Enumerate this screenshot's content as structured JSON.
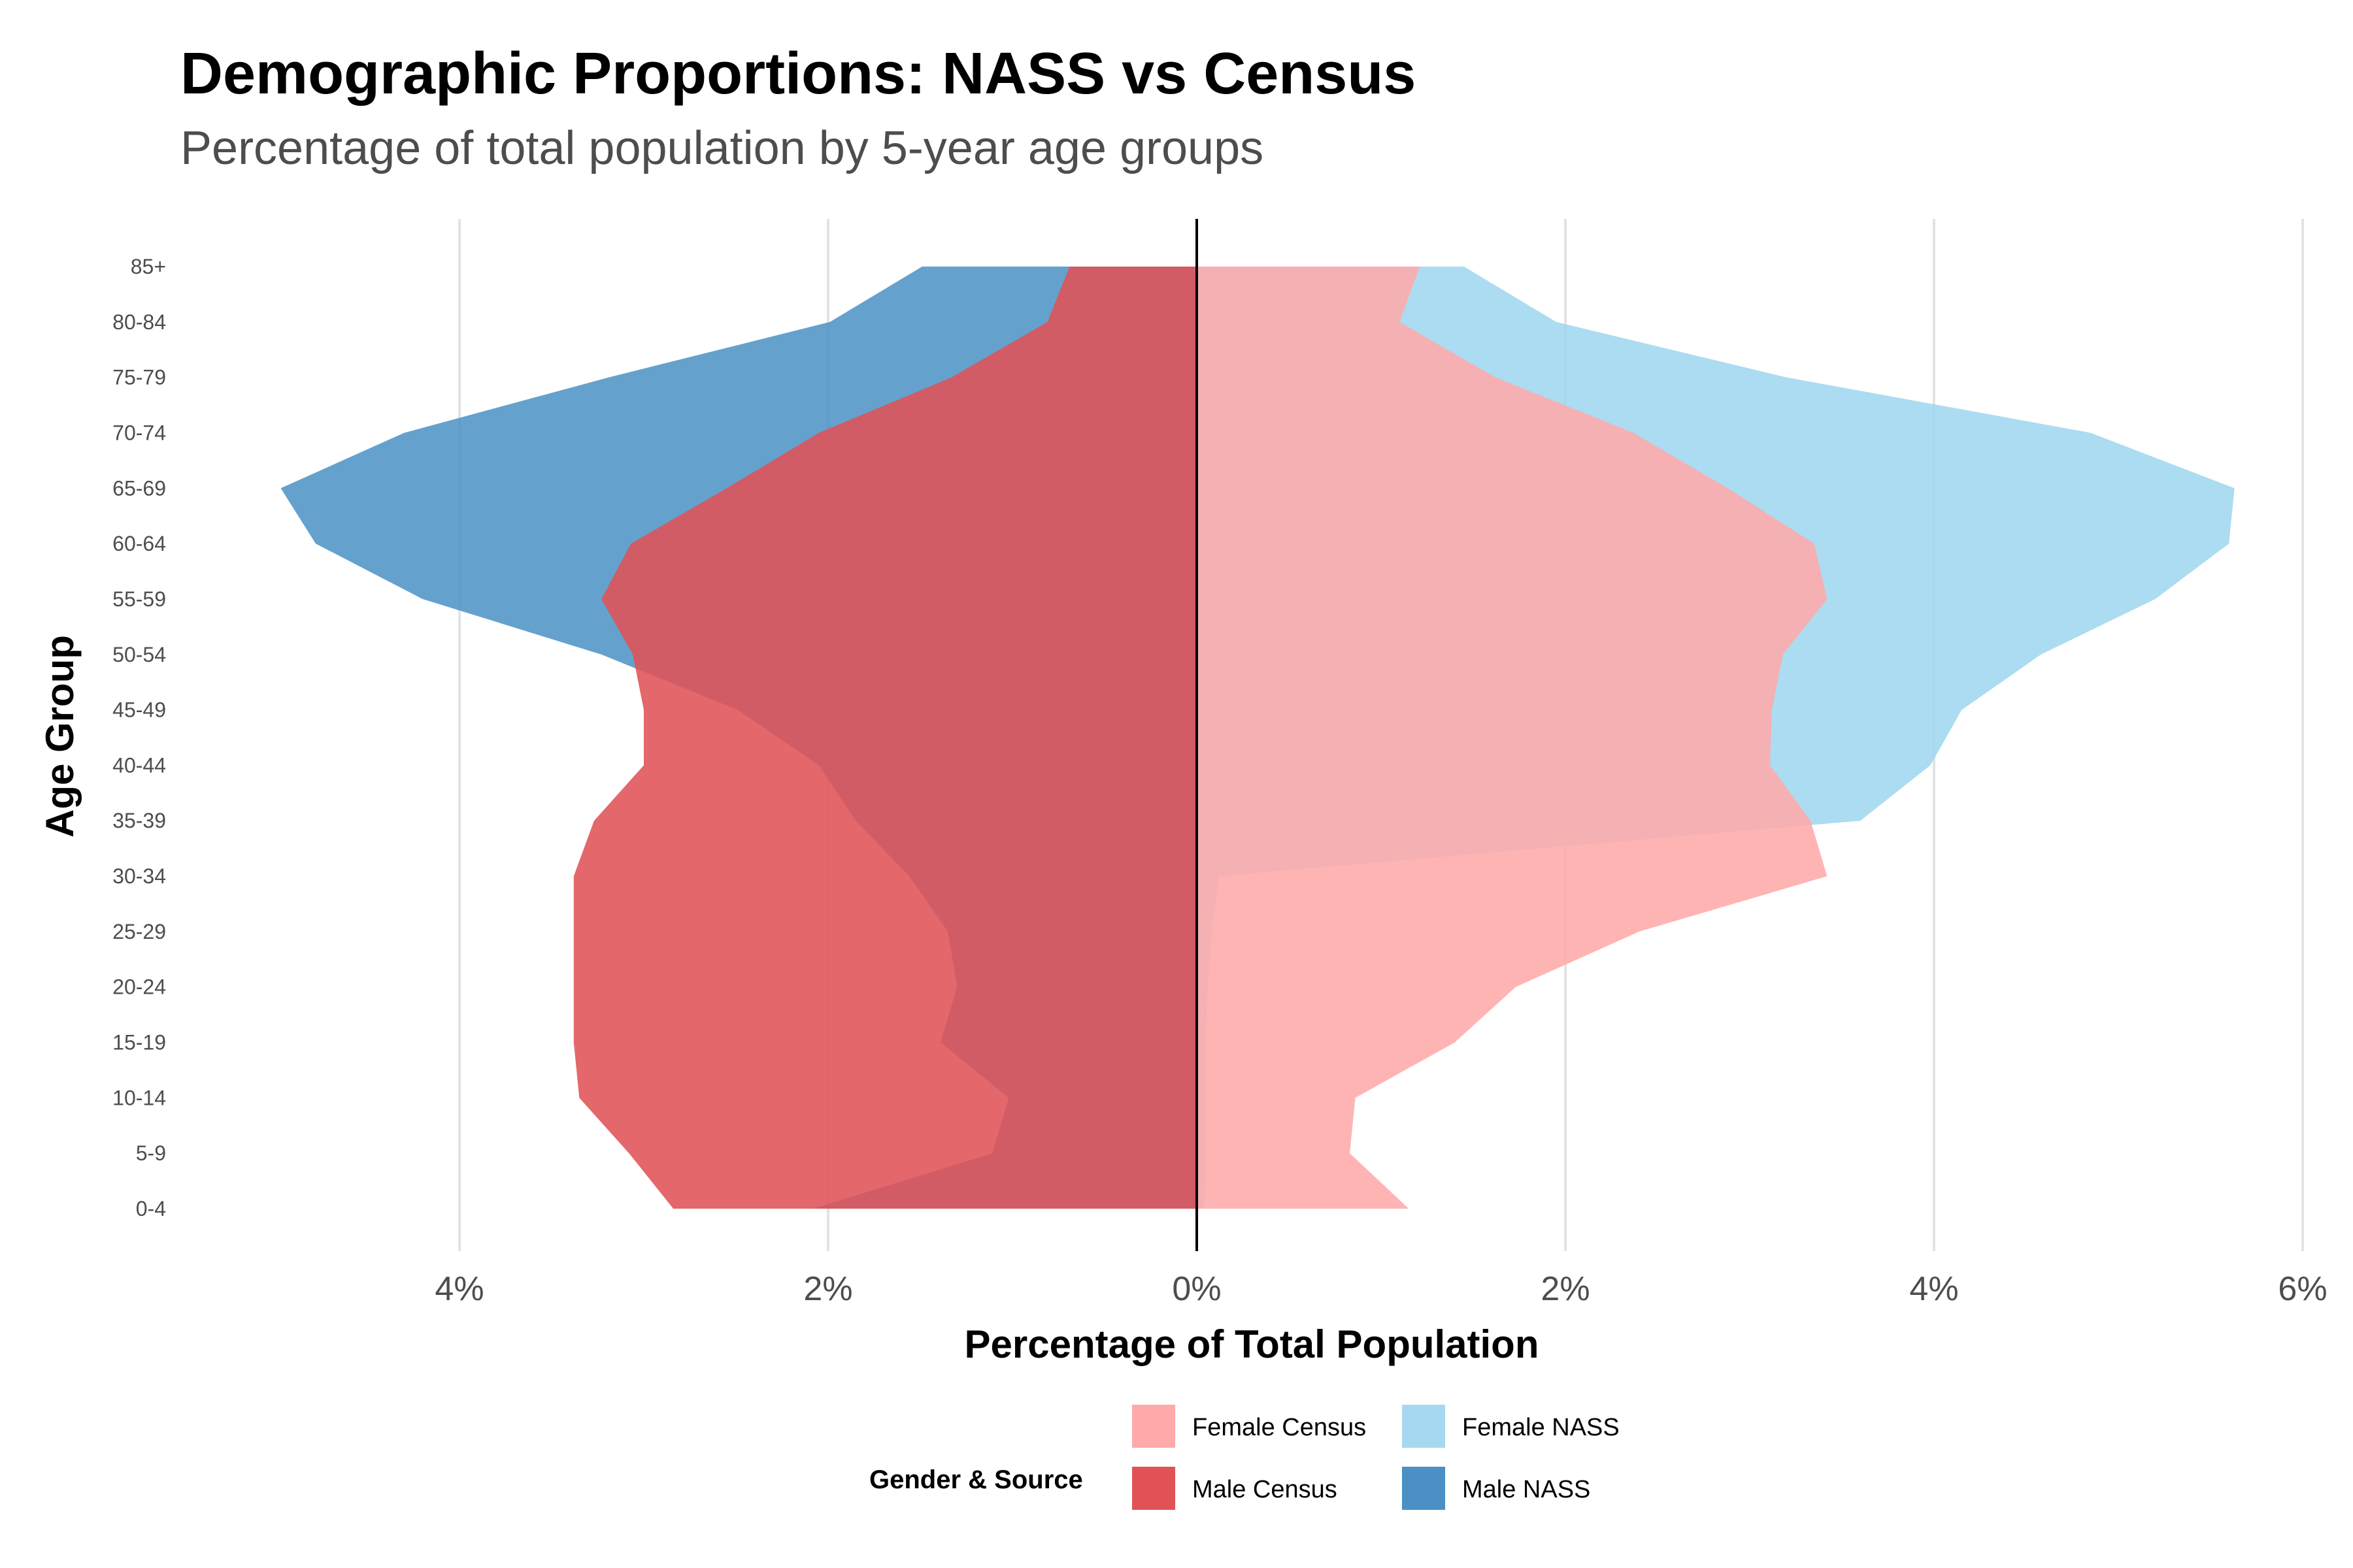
{
  "title": "Demographic Proportions: NASS vs Census",
  "subtitle": "Percentage of total population by 5-year age groups",
  "chart_data": {
    "type": "area",
    "orientation": "horizontal-pyramid",
    "title": "Demographic Proportions: NASS vs Census",
    "subtitle": "Percentage of total population by 5-year age groups",
    "xlabel": "Percentage of Total Population",
    "ylabel": "Age Group",
    "xlim": [
      -5.0,
      6.0
    ],
    "x_ticks": [
      -4,
      -2,
      0,
      2,
      4,
      6
    ],
    "x_tick_labels": [
      "4%",
      "2%",
      "0%",
      "2%",
      "4%",
      "6%"
    ],
    "grid": "vertical major gridlines",
    "categories": [
      "0-4",
      "5-9",
      "10-14",
      "15-19",
      "20-24",
      "25-29",
      "30-34",
      "35-39",
      "40-44",
      "45-49",
      "50-54",
      "55-59",
      "60-64",
      "65-69",
      "70-74",
      "75-79",
      "80-84",
      "85+"
    ],
    "series": [
      {
        "name": "Female Census",
        "side": "right",
        "color": "#FFAAAA",
        "values": [
          1.15,
          0.83,
          0.86,
          1.4,
          1.73,
          2.4,
          3.42,
          3.33,
          3.11,
          3.12,
          3.18,
          3.42,
          3.35,
          2.88,
          2.37,
          1.62,
          1.1,
          1.21
        ]
      },
      {
        "name": "Female NASS",
        "side": "right",
        "color": "#9DD6EE",
        "values": [
          0.04,
          0.05,
          0.05,
          0.05,
          0.06,
          0.08,
          0.12,
          3.6,
          3.98,
          4.15,
          4.58,
          5.2,
          5.6,
          5.63,
          4.85,
          3.2,
          1.95,
          1.45
        ]
      },
      {
        "name": "Male Census",
        "side": "left",
        "color": "#E05256",
        "values": [
          2.84,
          3.08,
          3.35,
          3.38,
          3.38,
          3.38,
          3.38,
          3.27,
          3.0,
          3.0,
          3.06,
          3.23,
          3.07,
          2.55,
          2.05,
          1.33,
          0.81,
          0.69
        ]
      },
      {
        "name": "Male NASS",
        "side": "left",
        "color": "#4A90C4",
        "values": [
          2.08,
          1.11,
          1.02,
          1.39,
          1.3,
          1.35,
          1.56,
          1.85,
          2.05,
          2.49,
          3.23,
          4.2,
          4.78,
          4.97,
          4.3,
          3.19,
          1.99,
          1.49
        ]
      }
    ],
    "legend": {
      "title": "Gender & Source",
      "position": "bottom",
      "items": [
        "Female Census",
        "Female NASS",
        "Male Census",
        "Male NASS"
      ]
    }
  }
}
